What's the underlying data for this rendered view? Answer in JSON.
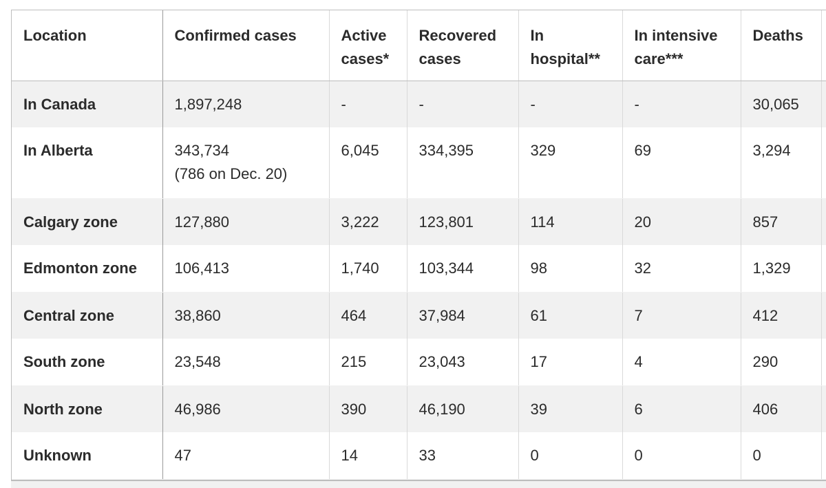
{
  "table": {
    "headers": [
      "Location",
      "Confirmed cases",
      "Active cases*",
      "Recovered cases",
      "In hospital**",
      "In intensive care***",
      "Deaths",
      ""
    ],
    "rows": [
      {
        "location": "In Canada",
        "confirmed": "1,897,248",
        "confirmed_note": "",
        "active": "-",
        "recovered": "-",
        "hospital": "-",
        "icu": "-",
        "deaths": "30,065"
      },
      {
        "location": "In Alberta",
        "confirmed": "343,734",
        "confirmed_note": "(786 on Dec. 20)",
        "active": "6,045",
        "recovered": "334,395",
        "hospital": "329",
        "icu": "69",
        "deaths": "3,294"
      },
      {
        "location": "Calgary zone",
        "confirmed": "127,880",
        "confirmed_note": "",
        "active": "3,222",
        "recovered": "123,801",
        "hospital": "114",
        "icu": "20",
        "deaths": "857"
      },
      {
        "location": "Edmonton zone",
        "confirmed": "106,413",
        "confirmed_note": "",
        "active": "1,740",
        "recovered": "103,344",
        "hospital": "98",
        "icu": "32",
        "deaths": "1,329"
      },
      {
        "location": "Central zone",
        "confirmed": "38,860",
        "confirmed_note": "",
        "active": "464",
        "recovered": "37,984",
        "hospital": "61",
        "icu": "7",
        "deaths": "412"
      },
      {
        "location": "South zone",
        "confirmed": "23,548",
        "confirmed_note": "",
        "active": "215",
        "recovered": "23,043",
        "hospital": "17",
        "icu": "4",
        "deaths": "290"
      },
      {
        "location": "North zone",
        "confirmed": "46,986",
        "confirmed_note": "",
        "active": "390",
        "recovered": "46,190",
        "hospital": "39",
        "icu": "6",
        "deaths": "406"
      },
      {
        "location": "Unknown",
        "confirmed": "47",
        "confirmed_note": "",
        "active": "14",
        "recovered": "33",
        "hospital": "0",
        "icu": "0",
        "deaths": "0"
      }
    ]
  },
  "colors": {
    "stripe": "#f1f1f1",
    "text": "#2b2b2b",
    "border": "#d9d9d9"
  }
}
